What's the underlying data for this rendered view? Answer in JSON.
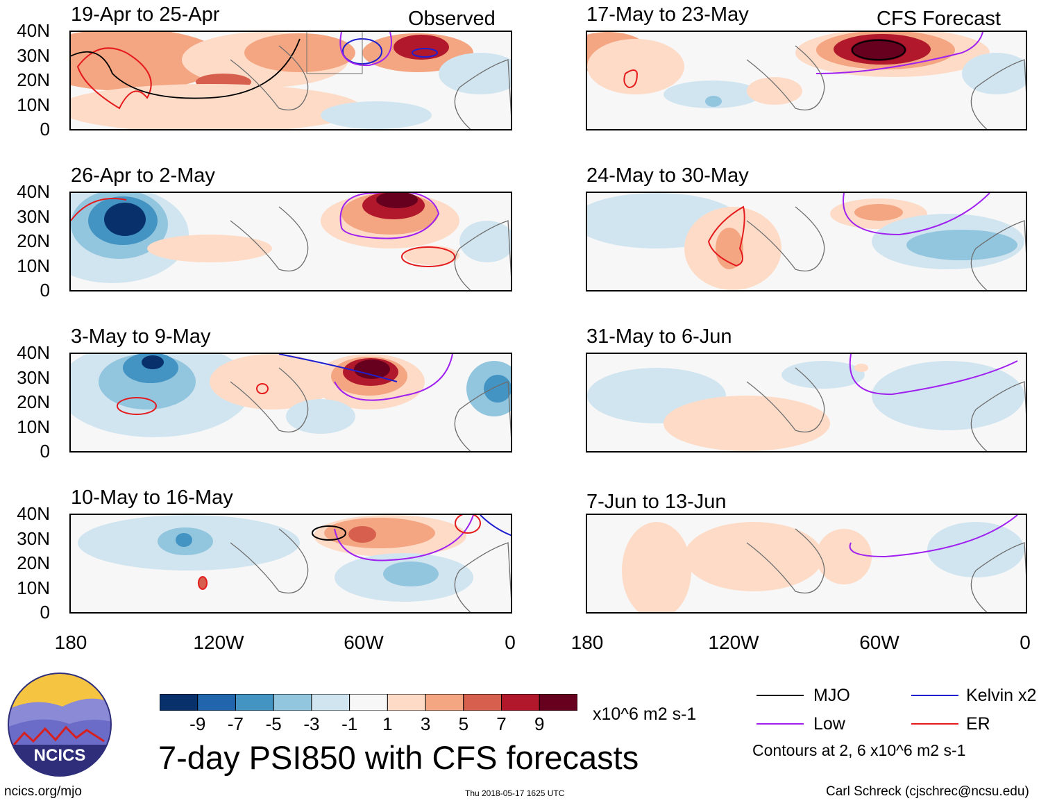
{
  "headers": {
    "observed": "Observed",
    "forecast": "CFS Forecast"
  },
  "panels": [
    {
      "title": "19-Apr to 25-Apr",
      "group": "observed"
    },
    {
      "title": "26-Apr to 2-May",
      "group": "observed"
    },
    {
      "title": "3-May to 9-May",
      "group": "observed"
    },
    {
      "title": "10-May to 16-May",
      "group": "observed"
    },
    {
      "title": "17-May to 23-May",
      "group": "forecast"
    },
    {
      "title": "24-May to 30-May",
      "group": "forecast"
    },
    {
      "title": "31-May to 6-Jun",
      "group": "forecast"
    },
    {
      "title": "7-Jun to 13-Jun",
      "group": "forecast"
    }
  ],
  "lat_labels": [
    "40N",
    "30N",
    "20N",
    "10N",
    "0"
  ],
  "lon_labels": [
    "180",
    "120W",
    "60W",
    "0"
  ],
  "colorbar": {
    "ticks": [
      "-9",
      "-7",
      "-5",
      "-3",
      "-1",
      "1",
      "3",
      "5",
      "7",
      "9"
    ],
    "units": "x10^6 m2 s-1",
    "colors": [
      "#08306b",
      "#2166ac",
      "#4393c3",
      "#92c5de",
      "#d1e5f0",
      "#f7f7f7",
      "#fddbc7",
      "#f4a582",
      "#d6604d",
      "#b2182b",
      "#67001f"
    ]
  },
  "legend": {
    "items": [
      {
        "label": "MJO",
        "color": "#000000"
      },
      {
        "label": "Kelvin x2",
        "color": "#1f1fd0"
      },
      {
        "label": "Low",
        "color": "#a020f0"
      },
      {
        "label": "ER",
        "color": "#e41a1c"
      }
    ],
    "note": "Contours at 2, 6 x10^6 m2 s-1"
  },
  "main_title": "7-day PSI850 with CFS forecasts",
  "logo_text": "NCICS",
  "footer": {
    "url": "ncics.org/mjo",
    "timestamp": "Thu 2018-05-17 1625 UTC",
    "credit": "Carl Schreck (cjschrec@ncsu.edu)"
  }
}
